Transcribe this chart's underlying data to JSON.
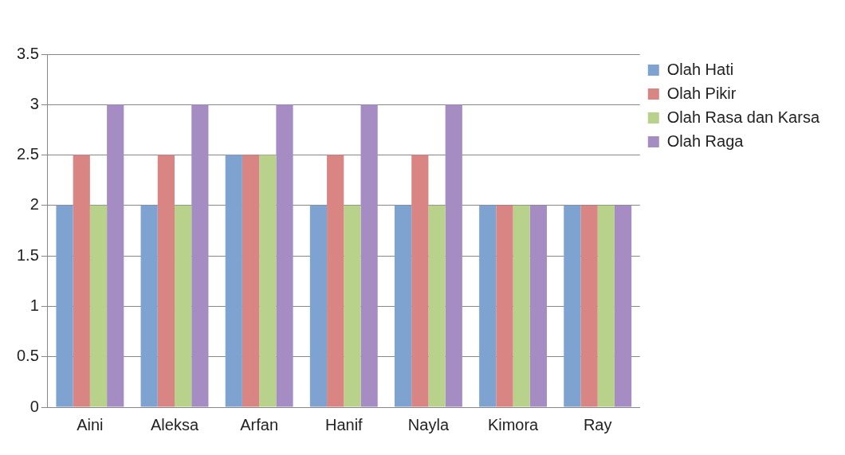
{
  "chart_data": {
    "type": "bar",
    "categories": [
      "Aini",
      "Aleksa",
      "Arfan",
      "Hanif",
      "Nayla",
      "Kimora",
      "Ray"
    ],
    "series": [
      {
        "name": "Olah Hati",
        "color": "#7fa3d1",
        "values": [
          2,
          2,
          2.5,
          2,
          2,
          2,
          2
        ]
      },
      {
        "name": "Olah Pikir",
        "color": "#d98583",
        "values": [
          2.5,
          2.5,
          2.5,
          2.5,
          2.5,
          2,
          2
        ]
      },
      {
        "name": "Olah Rasa dan Karsa",
        "color": "#b8d28b",
        "values": [
          2,
          2,
          2.5,
          2,
          2,
          2,
          2
        ]
      },
      {
        "name": "Olah Raga",
        "color": "#a58dc4",
        "values": [
          3,
          3,
          3,
          3,
          3,
          2,
          2
        ]
      }
    ],
    "ylim": [
      0,
      3.5
    ],
    "yticks": [
      0,
      0.5,
      1,
      1.5,
      2,
      2.5,
      3,
      3.5
    ],
    "grid": "y",
    "legend": "top right"
  }
}
